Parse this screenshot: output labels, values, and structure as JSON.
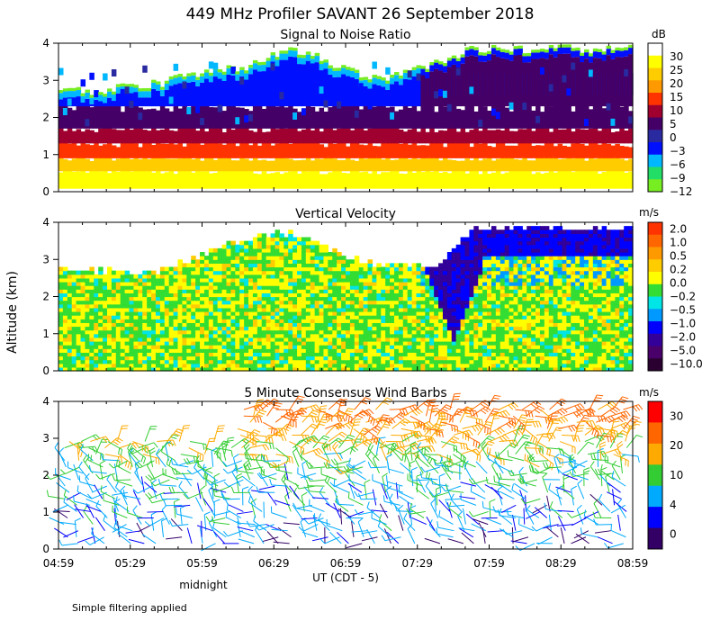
{
  "title": "449 MHz Profiler SAVANT 26 September 2018",
  "y_axis_label": "Altitude (km)",
  "x_axis_label": "UT  (CDT - 5)",
  "x_tick_labels": [
    "04:59",
    "05:29",
    "05:59",
    "06:29",
    "06:59",
    "07:29",
    "07:59",
    "08:29",
    "08:59"
  ],
  "midnight_label": "midnight",
  "footnote": "Simple filtering applied",
  "chart_data": [
    {
      "type": "heatmap",
      "title": "Signal to Noise Ratio",
      "y_ticks": [
        "0",
        "1",
        "2",
        "3",
        "4"
      ],
      "ylim": [
        0,
        4
      ],
      "colorbar": {
        "unit": "dB",
        "labels": [
          "30",
          "25",
          "20",
          "15",
          "10",
          "5",
          "0",
          "−3",
          "−6",
          "−9",
          "−12"
        ],
        "colors": [
          "#ffffff",
          "#ffff00",
          "#ffcc00",
          "#ff9900",
          "#ff3300",
          "#a00030",
          "#440066",
          "#2a2aa0",
          "#0010ff",
          "#00b8ff",
          "#22dd66",
          "#77ee22"
        ]
      },
      "top_boundary_km": [
        2.7,
        2.7,
        2.85,
        2.9,
        3.1,
        3.3,
        3.4,
        3.8,
        3.7,
        3.3,
        3.0,
        3.2,
        3.5,
        3.85,
        3.85,
        3.85,
        3.85,
        3.85,
        3.85
      ],
      "color_zones_km": {
        "white": [
          0,
          0.1
        ],
        "yellow": [
          0.1,
          0.55
        ],
        "orange": [
          0.55,
          0.9
        ],
        "red": [
          0.9,
          1.35
        ],
        "purple": [
          1.35,
          2.2
        ],
        "blue": [
          2.2,
          2.5
        ]
      }
    },
    {
      "type": "heatmap",
      "title": "Vertical Velocity",
      "y_ticks": [
        "0",
        "1",
        "2",
        "3",
        "4"
      ],
      "ylim": [
        0,
        4
      ],
      "colorbar": {
        "unit": "m/s",
        "labels": [
          "2.0",
          "1.0",
          "0.5",
          "0.2",
          "0.0",
          "−0.2",
          "−0.5",
          "−1.0",
          "−2.0",
          "−5.0",
          "−10.0"
        ],
        "colors": [
          "#ff3300",
          "#ff6600",
          "#ff9900",
          "#ffcc00",
          "#ffff00",
          "#33dd33",
          "#00e5e5",
          "#0099ff",
          "#0000ff",
          "#330099",
          "#4a006a",
          "#2a0030"
        ]
      },
      "top_boundary_km": [
        2.7,
        2.7,
        2.6,
        2.65,
        2.9,
        3.3,
        3.5,
        3.7,
        3.5,
        3.0,
        2.8,
        2.8,
        2.85,
        3.8,
        3.8,
        3.8,
        3.8,
        3.8,
        3.8
      ],
      "downdraft_core": {
        "time_range": [
          "07:29",
          "07:59"
        ],
        "min_altitude_km": 0.7,
        "colors": "-2.0 to -5.0"
      }
    },
    {
      "type": "wind_barbs",
      "title": "5 Minute Consensus Wind Barbs",
      "y_ticks": [
        "0",
        "1",
        "2",
        "3",
        "4"
      ],
      "ylim": [
        0,
        4
      ],
      "colorbar": {
        "unit": "m/s",
        "labels": [
          "30",
          "20",
          "10",
          "4",
          "0"
        ],
        "colors": [
          "#ff0000",
          "#ff6600",
          "#ffaa00",
          "#33cc33",
          "#00aaff",
          "#0000ff",
          "#330066"
        ]
      },
      "speed_by_altitude_km": [
        {
          "altitude": 0.5,
          "speed": 3
        },
        {
          "altitude": 1.0,
          "speed": 5
        },
        {
          "altitude": 1.5,
          "speed": 6
        },
        {
          "altitude": 2.0,
          "speed": 8
        },
        {
          "altitude": 2.5,
          "speed": 12
        },
        {
          "altitude": 3.0,
          "speed": 20
        },
        {
          "altitude": 3.5,
          "speed": 22
        }
      ]
    }
  ]
}
